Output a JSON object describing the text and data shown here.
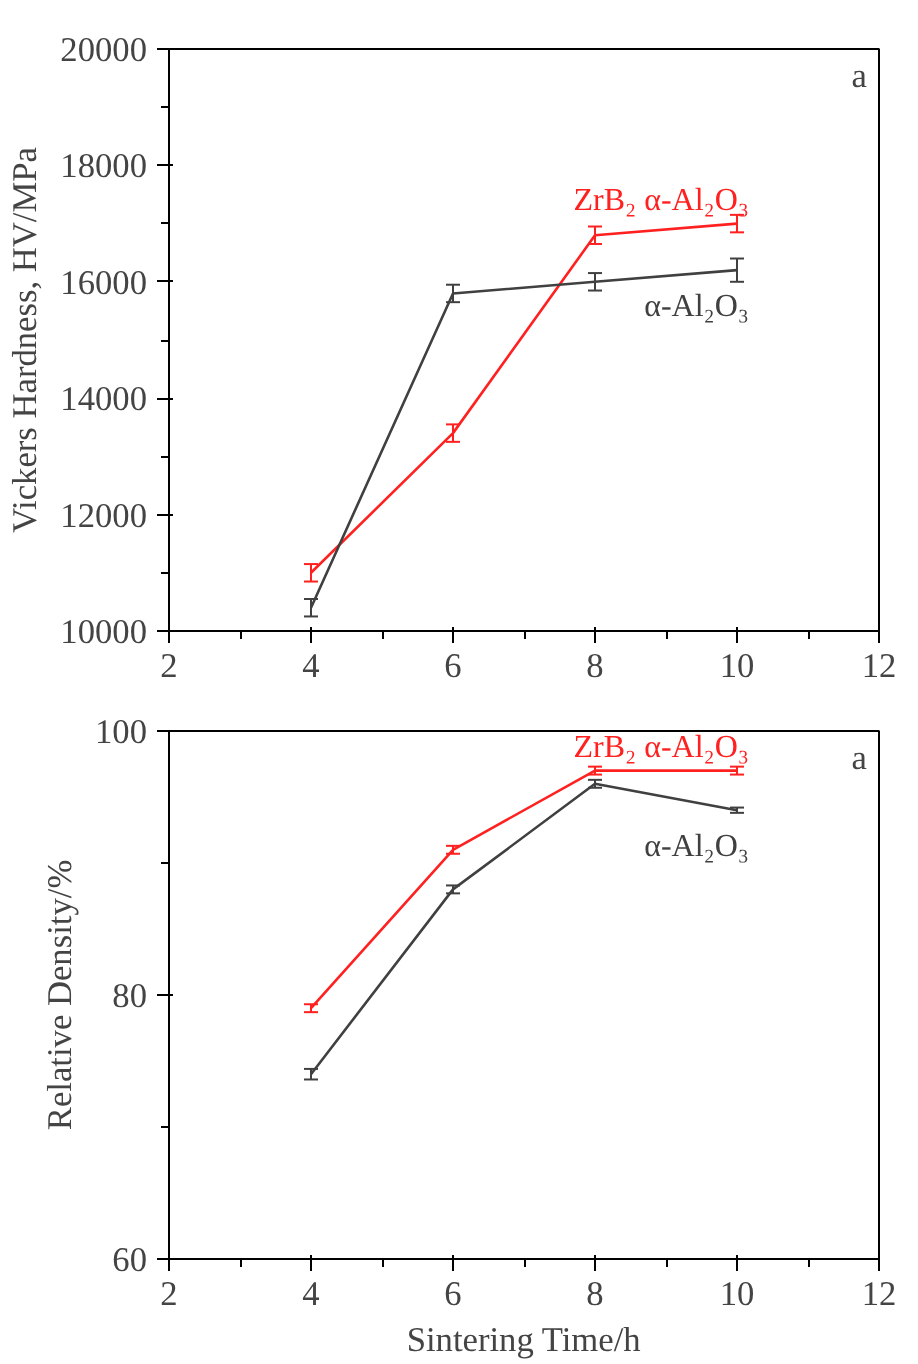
{
  "chart_data": [
    {
      "type": "line",
      "ylabel": "Vickers Hardness, HV/MPa",
      "x": [
        4,
        6,
        8,
        10
      ],
      "xlim": [
        2,
        12
      ],
      "xticks": [
        2,
        4,
        6,
        8,
        10,
        12
      ],
      "ylim": [
        10000,
        20000
      ],
      "yticks": [
        10000,
        12000,
        14000,
        16000,
        18000,
        20000
      ],
      "grid": false,
      "legend": false,
      "marker": "none",
      "annotations": [
        "a"
      ],
      "series": [
        {
          "name": "ZrB₂ α-Al₂O₃",
          "color": "#ff2020",
          "values": [
            11000,
            13400,
            16800,
            17000
          ],
          "errors": [
            150,
            150,
            150,
            150
          ]
        },
        {
          "name": "α-Al₂O₃",
          "color": "#404040",
          "values": [
            10400,
            15800,
            16000,
            16200
          ],
          "errors": [
            150,
            150,
            150,
            200
          ]
        }
      ]
    },
    {
      "type": "line",
      "xlabel": "Sintering Time/h",
      "ylabel": "Relative Density/%",
      "x": [
        4,
        6,
        8,
        10
      ],
      "xlim": [
        2,
        12
      ],
      "xticks": [
        2,
        4,
        6,
        8,
        10,
        12
      ],
      "ylim": [
        60,
        100
      ],
      "yticks": [
        60,
        80,
        100
      ],
      "grid": false,
      "legend": false,
      "marker": "none",
      "annotations": [
        "a"
      ],
      "series": [
        {
          "name": "ZrB₂ α-Al₂O₃",
          "color": "#ff2020",
          "values": [
            79,
            91,
            97,
            97
          ],
          "errors": [
            0.3,
            0.3,
            0.3,
            0.3
          ]
        },
        {
          "name": "α-Al₂O₃",
          "color": "#404040",
          "values": [
            74,
            88,
            96,
            94
          ],
          "errors": [
            0.4,
            0.3,
            0.3,
            0.2
          ]
        }
      ]
    }
  ]
}
